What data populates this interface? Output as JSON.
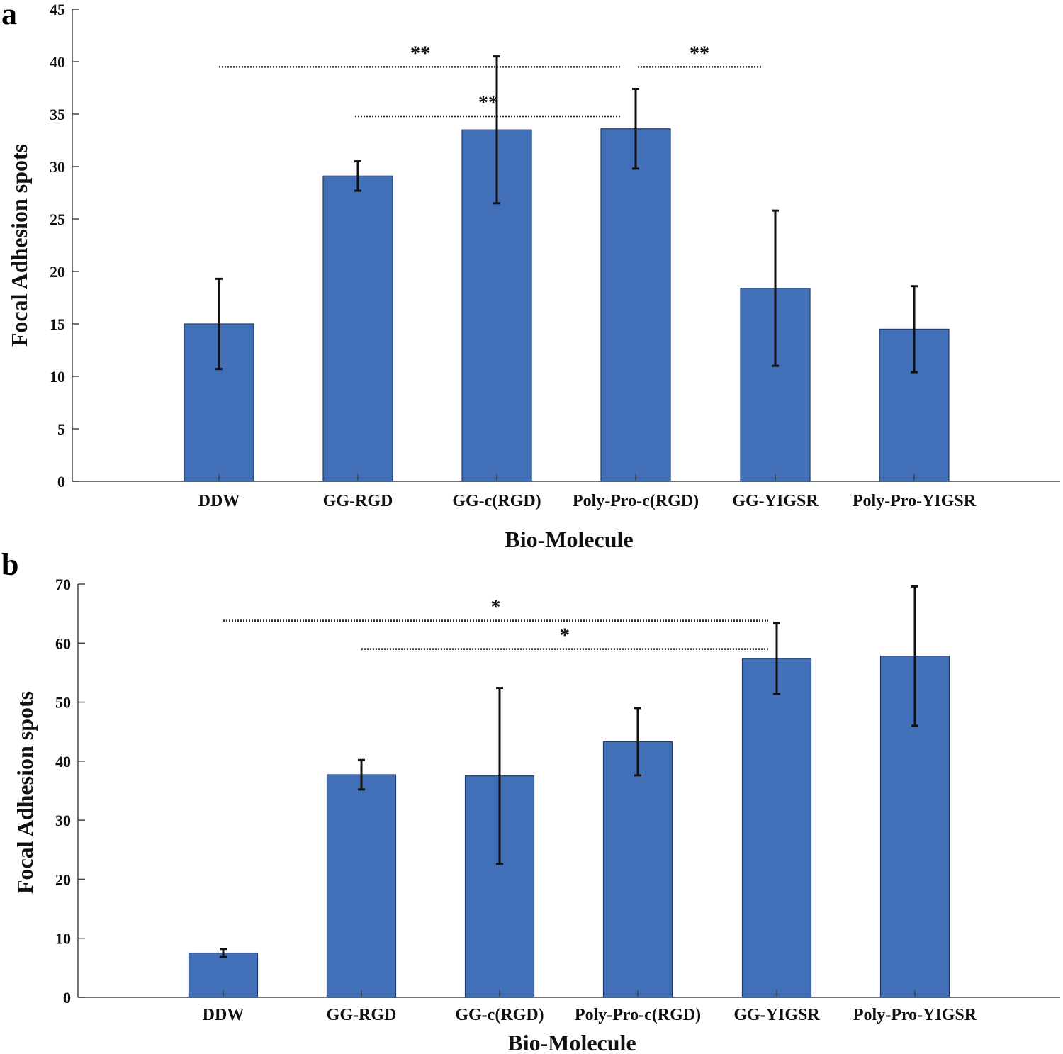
{
  "figure": {
    "background": "#ffffff",
    "bar_color": "#4170b8",
    "bar_stroke": "#1f3a66"
  },
  "chart_data": [
    {
      "panel": "a",
      "type": "bar",
      "categories": [
        "DDW",
        "GG-RGD",
        "GG-c(RGD)",
        "Poly-Pro-c(RGD)",
        "GG-YIGSR",
        "Poly-Pro-YIGSR"
      ],
      "values": [
        15.0,
        29.1,
        33.5,
        33.6,
        18.4,
        14.5
      ],
      "errors": [
        4.3,
        1.4,
        7.0,
        3.8,
        7.4,
        4.1
      ],
      "xlabel": "Bio-Molecule",
      "ylabel": "Focal Adhesion spots",
      "ylim": [
        0,
        45
      ],
      "yticks": [
        0,
        5,
        10,
        15,
        20,
        25,
        30,
        35,
        40,
        45
      ],
      "significance": [
        {
          "from": 0,
          "to": 3,
          "y": 39.5,
          "label": "**"
        },
        {
          "from": 3,
          "to": 4,
          "y": 39.5,
          "label": "**"
        },
        {
          "from": 1,
          "to": 3,
          "y": 34.8,
          "label": "**"
        }
      ]
    },
    {
      "panel": "b",
      "type": "bar",
      "categories": [
        "DDW",
        "GG-RGD",
        "GG-c(RGD)",
        "Poly-Pro-c(RGD)",
        "GG-YIGSR",
        "Poly-Pro-YIGSR"
      ],
      "values": [
        7.5,
        37.7,
        37.5,
        43.3,
        57.4,
        57.8
      ],
      "errors": [
        0.7,
        2.5,
        14.9,
        5.7,
        6.0,
        11.8
      ],
      "xlabel": "Bio-Molecule",
      "ylabel": "Focal Adhesion spots",
      "ylim": [
        0,
        70
      ],
      "yticks": [
        0,
        10,
        20,
        30,
        40,
        50,
        60,
        70
      ],
      "significance": [
        {
          "from": 0,
          "to": 4,
          "y": 63.8,
          "label": "*"
        },
        {
          "from": 1,
          "to": 4,
          "y": 59.0,
          "label": "*"
        }
      ]
    }
  ]
}
